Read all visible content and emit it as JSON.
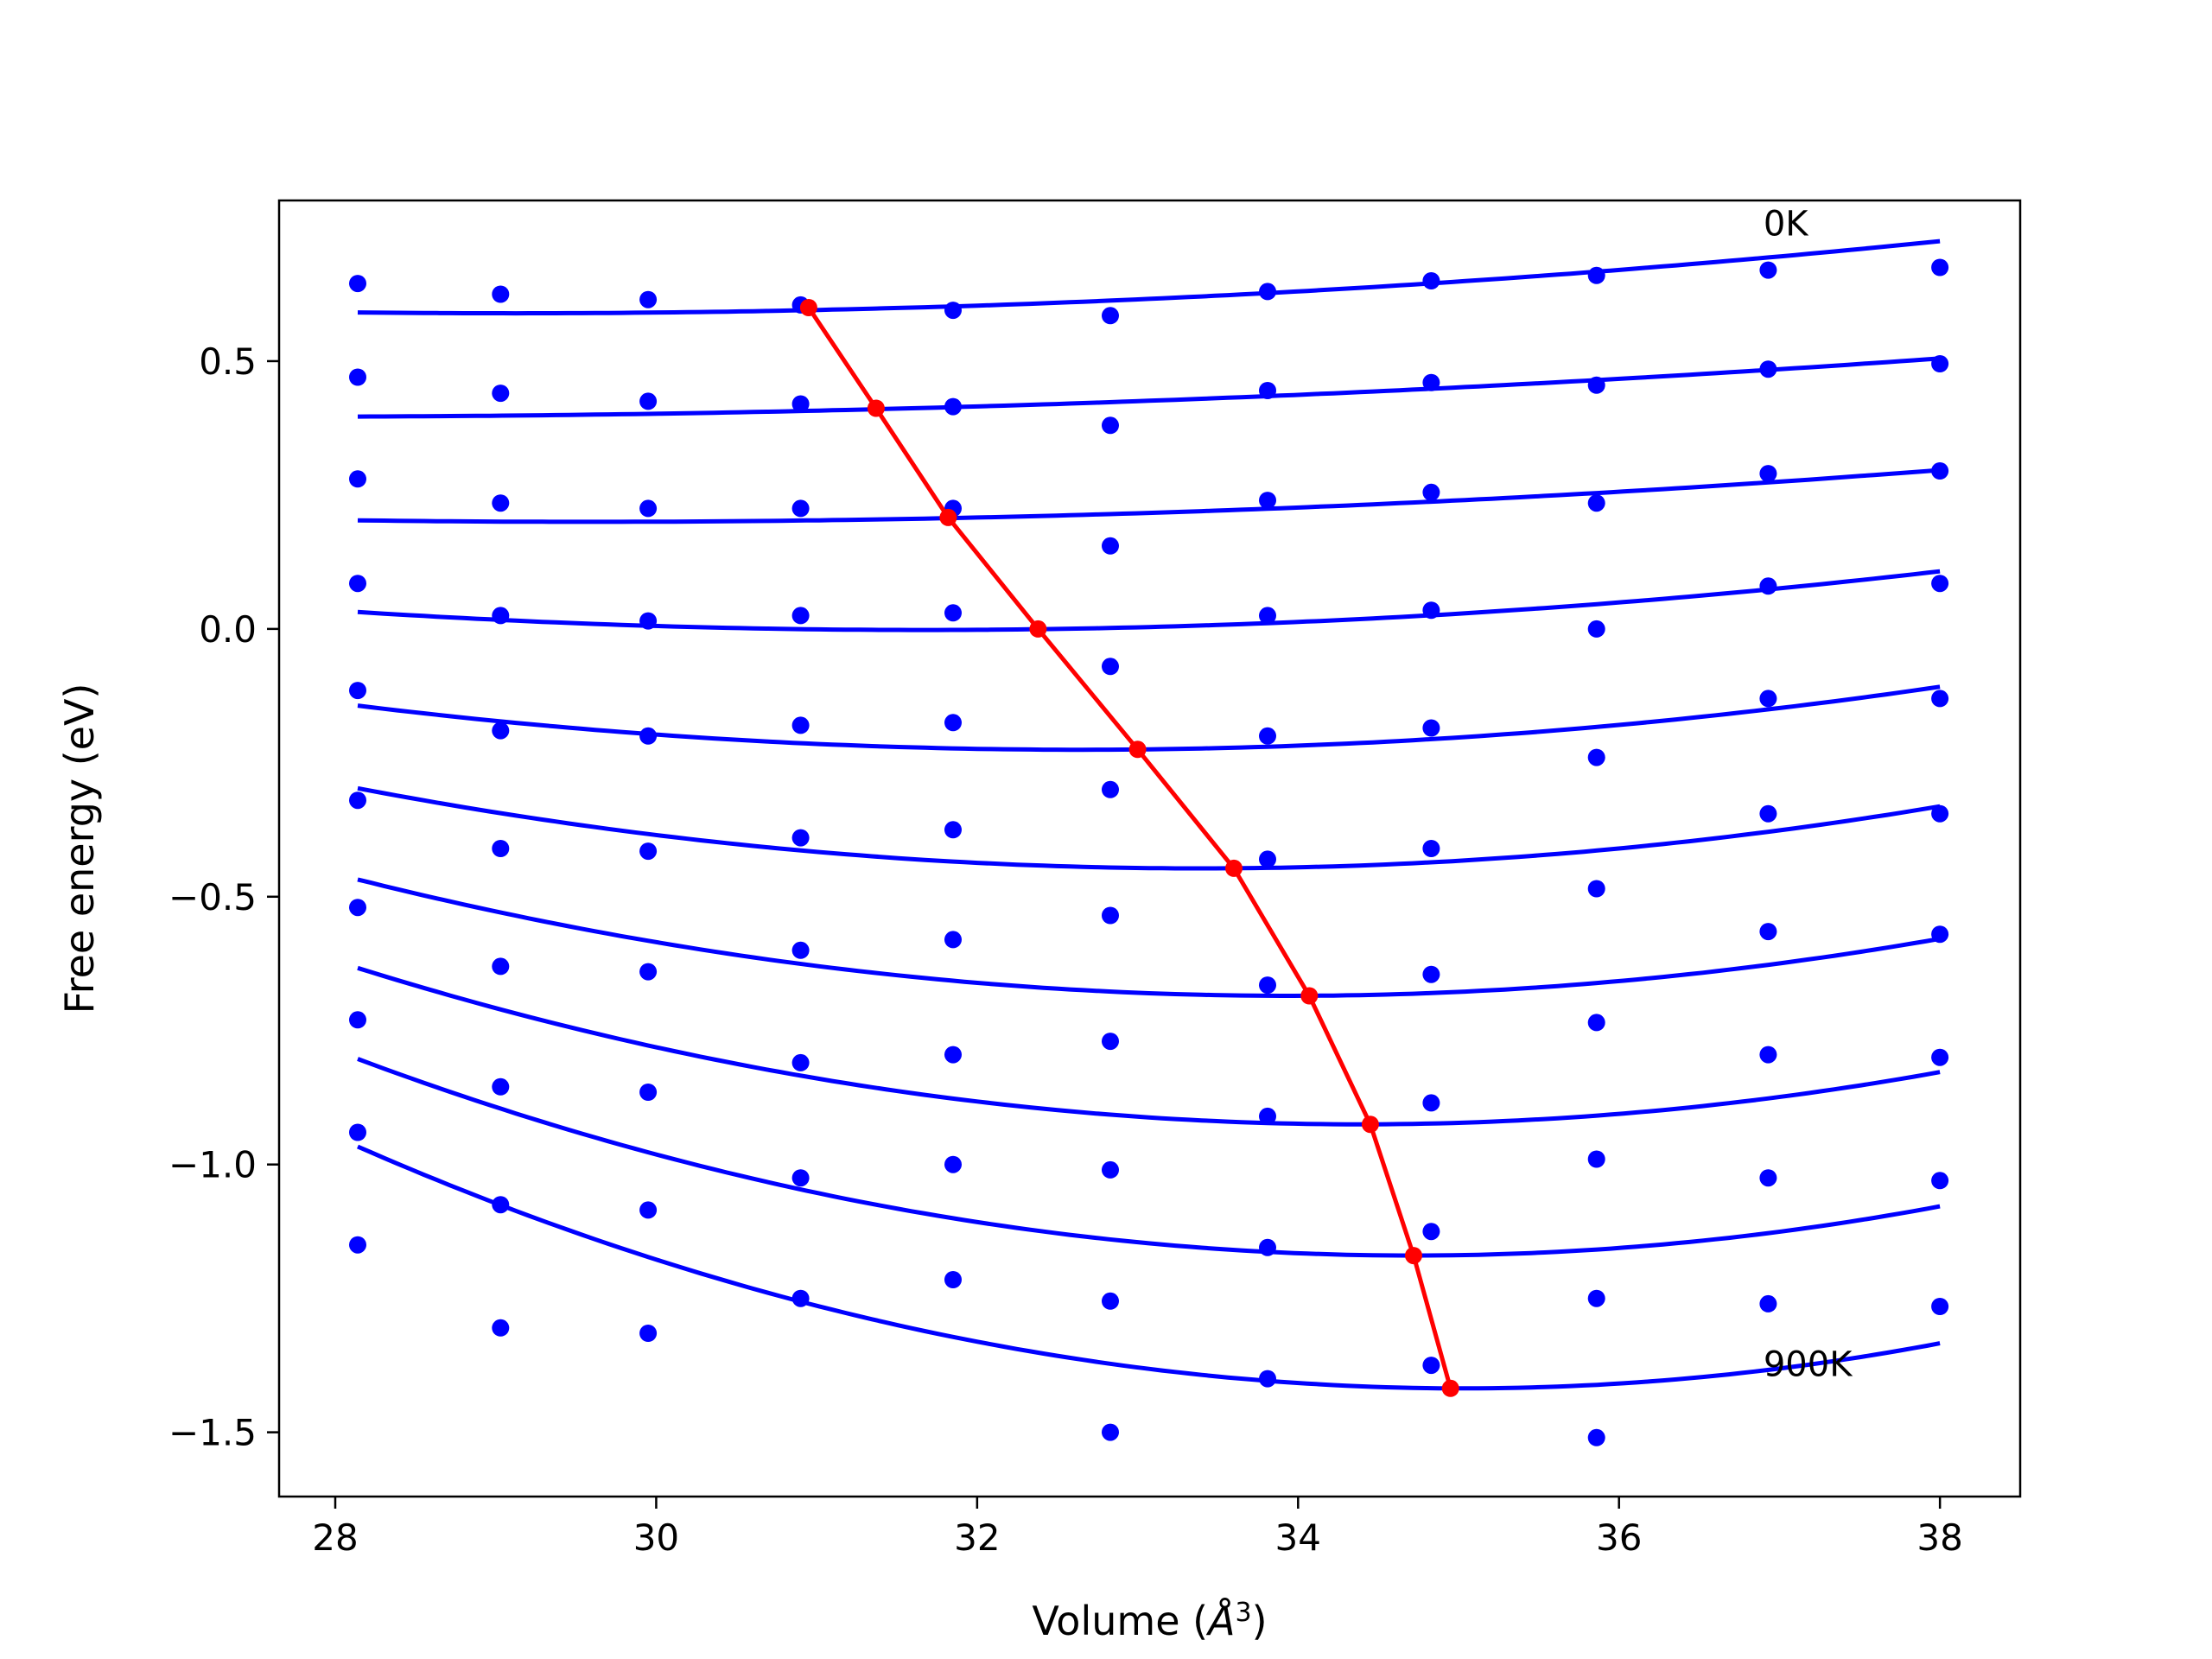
{
  "chart_data": {
    "type": "scatter",
    "xlabel_main": "Volume (",
    "xlabel_unit": "Å",
    "xlabel_exp": "3",
    "xlabel_close": ")",
    "ylabel": "Free energy (eV)",
    "xlim": [
      27.65,
      38.5
    ],
    "ylim": [
      -1.62,
      0.8
    ],
    "x_ticks": [
      28,
      30,
      32,
      34,
      36,
      38
    ],
    "x_tick_labels": [
      "28",
      "30",
      "32",
      "34",
      "36",
      "38"
    ],
    "y_ticks": [
      0.5,
      0.0,
      -0.5,
      -1.0,
      -1.5
    ],
    "y_tick_labels": [
      "0.5",
      "0.0",
      "−0.5",
      "−1.0",
      "−1.5"
    ],
    "grid": false,
    "colors": {
      "points": "#0000ff",
      "fits": "#0000ff",
      "minimum_path": "#ff0000"
    },
    "annotations": [
      {
        "text": "0K",
        "x": 36.9,
        "y": 0.735
      },
      {
        "text": "900K",
        "x": 36.9,
        "y": -1.395
      }
    ],
    "volumes": [
      28.14,
      29.03,
      29.95,
      30.9,
      31.85,
      32.83,
      33.81,
      34.83,
      35.86,
      36.93,
      38.0
    ],
    "series": [
      {
        "points": [
          0.645,
          0.625,
          0.615,
          0.605,
          0.595,
          0.585,
          0.63,
          0.65,
          0.66,
          0.67,
          0.675
        ],
        "fit": {
          "a": 0.0085,
          "vmin": 31.6,
          "emin": 0.6,
          "b": 0.0005
        }
      },
      {
        "points": [
          0.47,
          0.44,
          0.425,
          0.42,
          0.415,
          0.38,
          0.445,
          0.46,
          0.455,
          0.485,
          0.495
        ],
        "fit": {
          "a": 0.008,
          "vmin": 31.6,
          "emin": 0.412,
          "b": 0.0003
        }
      },
      {
        "points": [
          0.28,
          0.235,
          0.225,
          0.225,
          0.225,
          0.155,
          0.24,
          0.255,
          0.235,
          0.29,
          0.295
        ],
        "fit": {
          "a": 0.0066,
          "vmin": 32.0,
          "emin": 0.208,
          "b": 0.0004
        }
      },
      {
        "points": [
          0.085,
          0.025,
          0.015,
          0.025,
          0.03,
          -0.07,
          0.025,
          0.035,
          0.0,
          0.08,
          0.085
        ],
        "fit": {
          "a": 0.0046,
          "vmin": 32.5,
          "emin": 0.0,
          "b": 0.0008
        }
      },
      {
        "points": [
          -0.115,
          -0.19,
          -0.2,
          -0.18,
          -0.175,
          -0.3,
          -0.2,
          -0.185,
          -0.24,
          -0.13,
          -0.13
        ],
        "fit": {
          "a": 0.003,
          "vmin": 33.0,
          "emin": -0.225,
          "b": 0.0012
        }
      },
      {
        "points": [
          -0.32,
          -0.41,
          -0.415,
          -0.39,
          -0.375,
          -0.535,
          -0.43,
          -0.41,
          -0.485,
          -0.345,
          -0.345
        ],
        "fit": {
          "a": 0.0018,
          "vmin": 33.55,
          "emin": -0.447,
          "b": 0.0016
        }
      },
      {
        "points": [
          -0.52,
          -0.63,
          -0.64,
          -0.6,
          -0.58,
          -0.77,
          -0.665,
          -0.645,
          -0.735,
          -0.565,
          -0.57
        ],
        "fit": {
          "a": 0.0008,
          "vmin": 34.0,
          "emin": -0.685,
          "b": 0.0019
        }
      },
      {
        "points": [
          -0.73,
          -0.855,
          -0.865,
          -0.81,
          -0.795,
          -1.01,
          -0.91,
          -0.885,
          -0.99,
          -0.795,
          -0.8
        ],
        "fit": {
          "a": 0.0002,
          "vmin": 34.4,
          "emin": -0.925,
          "b": 0.0022
        }
      },
      {
        "points": [
          -0.94,
          -1.075,
          -1.085,
          -1.025,
          -1.0,
          -1.255,
          -1.155,
          -1.125,
          -1.25,
          -1.025,
          -1.03
        ],
        "fit": {
          "a": -0.0002,
          "vmin": 34.7,
          "emin": -1.17,
          "b": 0.0025
        }
      },
      {
        "points": [
          -1.15,
          -1.305,
          -1.315,
          -1.25,
          -1.215,
          -1.5,
          -1.4,
          -1.375,
          -1.51,
          -1.26,
          -1.265
        ],
        "fit": {
          "a": -0.0005,
          "vmin": 35.0,
          "emin": -1.418,
          "b": 0.0028
        }
      }
    ],
    "minimum_path": {
      "x": [
        30.95,
        31.37,
        31.82,
        32.38,
        33.0,
        33.6,
        34.07,
        34.45,
        34.72,
        34.95
      ],
      "y": [
        0.6,
        0.412,
        0.208,
        0.0,
        -0.225,
        -0.447,
        -0.685,
        -0.925,
        -1.17,
        -1.418
      ]
    }
  }
}
